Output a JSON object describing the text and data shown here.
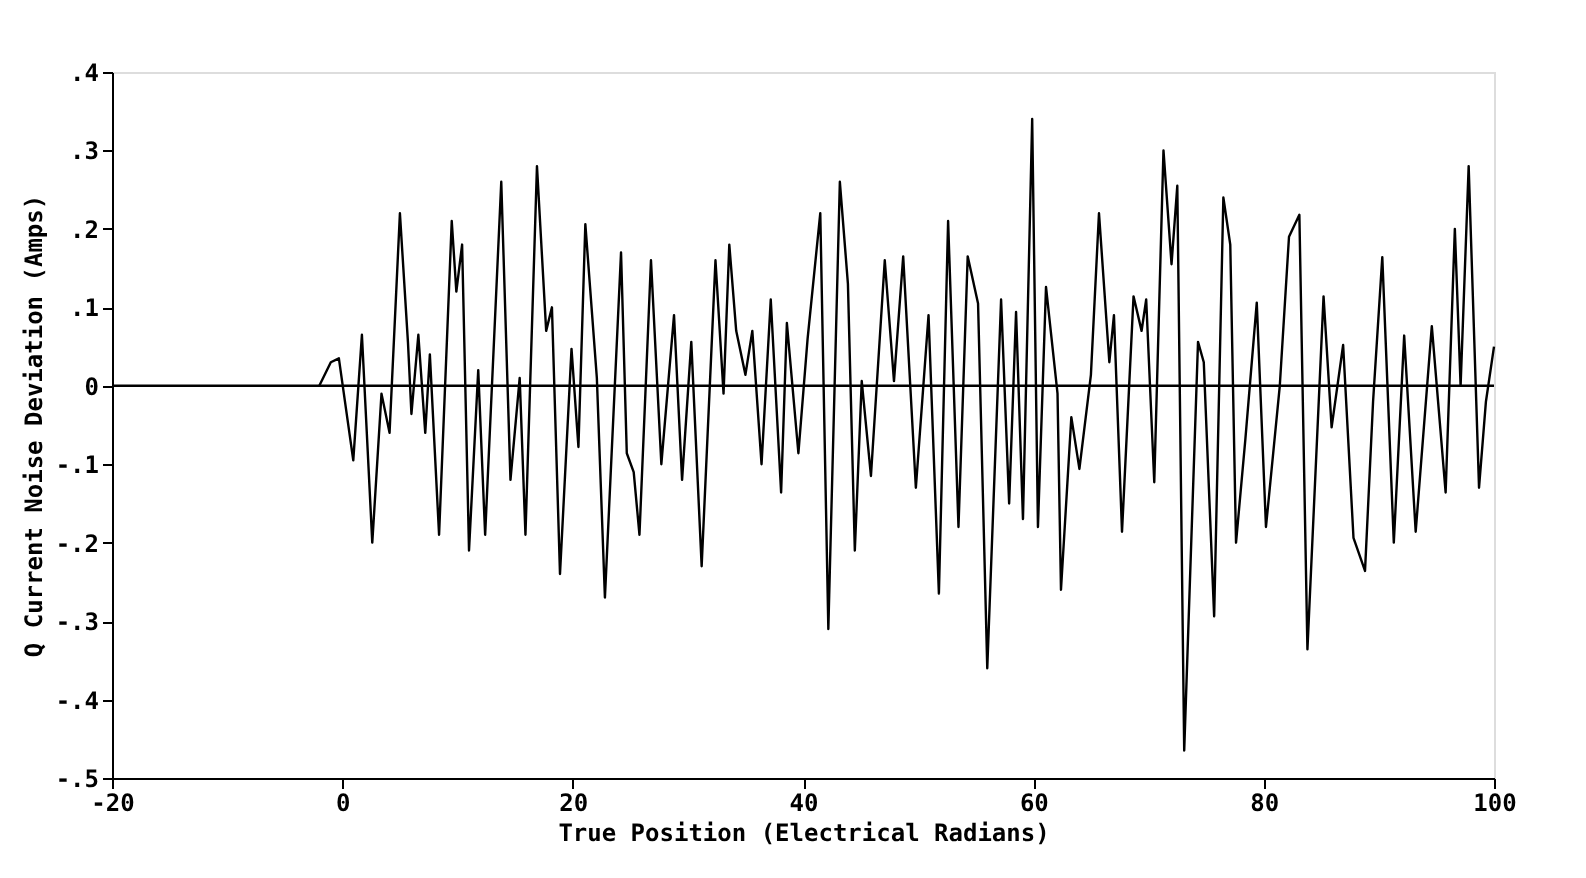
{
  "chart_data": {
    "type": "line",
    "xlabel": "True Position (Electrical Radians)",
    "ylabel": "Q Current Noise Deviation (Amps)",
    "xlim": [
      -20,
      100
    ],
    "xticks": [
      -20,
      0,
      20,
      40,
      60,
      80,
      100
    ],
    "ylim": [
      -0.5,
      0.4
    ],
    "yticks": [
      {
        "value": 0.4,
        "label": ".4"
      },
      {
        "value": 0.3,
        "label": ".3"
      },
      {
        "value": 0.2,
        "label": ".2"
      },
      {
        "value": 0.1,
        "label": ".1"
      },
      {
        "value": 0,
        "label": "0"
      },
      {
        "value": -0.1,
        "label": "-.1"
      },
      {
        "value": -0.2,
        "label": "-.2"
      },
      {
        "value": -0.3,
        "label": "-.3"
      },
      {
        "value": -0.4,
        "label": "-.4"
      },
      {
        "value": -0.5,
        "label": "-.5"
      }
    ],
    "grid": false,
    "legend": false,
    "marker": "none",
    "line_style": "solid",
    "ref_lines": [
      {
        "axis": "y",
        "value": 0,
        "color": "#000000"
      }
    ],
    "series": [
      {
        "color": "#000000",
        "x": [
          -2,
          -1,
          -0.3,
          0.95,
          1.7,
          2.6,
          3.4,
          4.1,
          5.0,
          5.7,
          6.0,
          6.6,
          7.2,
          7.6,
          8.4,
          9.5,
          9.9,
          10.4,
          11.0,
          11.8,
          12.4,
          13.8,
          14.6,
          15.4,
          15.9,
          16.9,
          17.7,
          18.2,
          18.9,
          19.9,
          20.5,
          21.1,
          22.1,
          22.8,
          24.2,
          24.7,
          25.3,
          25.8,
          26.8,
          27.7,
          28.8,
          29.5,
          30.3,
          31.2,
          32.4,
          33.1,
          33.6,
          34.2,
          35.0,
          35.6,
          36.4,
          37.2,
          38.1,
          38.6,
          39.6,
          40.4,
          41.5,
          42.2,
          43.2,
          43.9,
          44.5,
          45.1,
          45.9,
          47.1,
          47.9,
          48.7,
          49.8,
          50.9,
          51.8,
          52.6,
          53.5,
          54.3,
          55.2,
          56.0,
          57.2,
          57.9,
          58.5,
          59.1,
          59.9,
          60.4,
          61.1,
          62.1,
          62.4,
          63.3,
          64.0,
          65.0,
          65.7,
          66.6,
          67.0,
          67.7,
          68.7,
          69.4,
          69.8,
          70.5,
          71.3,
          72.0,
          72.5,
          73.1,
          74.3,
          74.8,
          75.7,
          76.5,
          77.1,
          77.6,
          78.4,
          79.4,
          80.2,
          81.4,
          82.2,
          83.1,
          83.8,
          85.2,
          85.9,
          86.9,
          87.8,
          88.8,
          89.5,
          90.3,
          91.3,
          92.2,
          93.2,
          94.6,
          95.8,
          96.6,
          97.1,
          97.8,
          98.7,
          99.3,
          100
        ],
        "values": [
          0,
          0.03,
          0.035,
          -0.095,
          0.065,
          -0.2,
          -0.01,
          -0.06,
          0.22,
          0.055,
          -0.036,
          0.065,
          -0.06,
          0.04,
          -0.19,
          0.21,
          0.12,
          0.18,
          -0.21,
          0.02,
          -0.19,
          0.26,
          -0.12,
          0.01,
          -0.19,
          0.28,
          0.07,
          0.1,
          -0.24,
          0.047,
          -0.078,
          0.206,
          0.01,
          -0.27,
          0.17,
          -0.086,
          -0.11,
          -0.19,
          0.16,
          -0.1,
          0.09,
          -0.12,
          0.056,
          -0.23,
          0.16,
          -0.01,
          0.18,
          0.07,
          0.014,
          0.07,
          -0.1,
          0.11,
          -0.136,
          0.08,
          -0.086,
          0.06,
          0.22,
          -0.31,
          0.26,
          0.13,
          -0.21,
          0.006,
          -0.115,
          0.16,
          0.006,
          0.165,
          -0.13,
          0.09,
          -0.265,
          0.21,
          -0.18,
          0.165,
          0.105,
          -0.36,
          0.11,
          -0.15,
          0.094,
          -0.17,
          0.34,
          -0.18,
          0.126,
          -0.01,
          -0.26,
          -0.04,
          -0.106,
          0.014,
          0.22,
          0.03,
          0.09,
          -0.186,
          0.114,
          0.07,
          0.11,
          -0.123,
          0.3,
          0.155,
          0.255,
          -0.465,
          0.056,
          0.03,
          -0.294,
          0.24,
          0.18,
          -0.2,
          -0.07,
          0.106,
          -0.18,
          0,
          0.19,
          0.218,
          -0.336,
          0.114,
          -0.053,
          0.052,
          -0.194,
          -0.236,
          -0.02,
          0.164,
          -0.2,
          0.064,
          -0.186,
          0.076,
          -0.136,
          0.2,
          0,
          0.28,
          -0.13,
          -0.02,
          0.05
        ]
      }
    ]
  }
}
